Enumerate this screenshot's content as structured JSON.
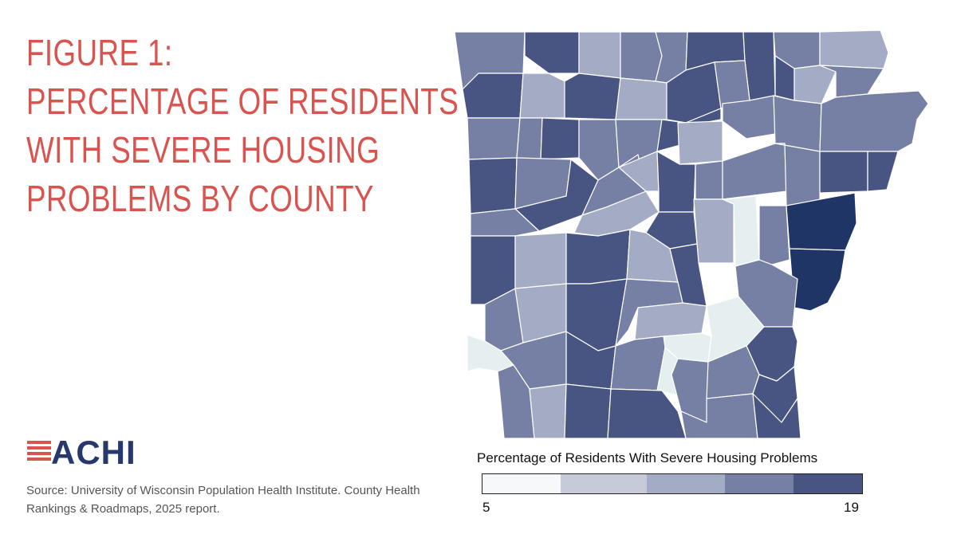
{
  "title_lines": [
    "FIGURE 1:",
    "PERCENTAGE OF RESIDENTS",
    "WITH SEVERE HOUSING",
    "PROBLEMS BY COUNTY"
  ],
  "logo_text": "ACHI",
  "source": "Source: University of Wisconsin Population Health Institute. County Health Rankings & Roadmaps, 2025 report.",
  "legend": {
    "title": "Percentage of Residents With Severe Housing Problems",
    "min": "5",
    "max": "19",
    "bins": [
      "#f7f8fa",
      "#c6cad9",
      "#a4abc4",
      "#767fa4",
      "#485582"
    ]
  },
  "colors": {
    "title_red": "#d9534f",
    "logo_navy": "#27386c",
    "darkest": "#1e3566",
    "lightest": "#e6efef"
  }
}
